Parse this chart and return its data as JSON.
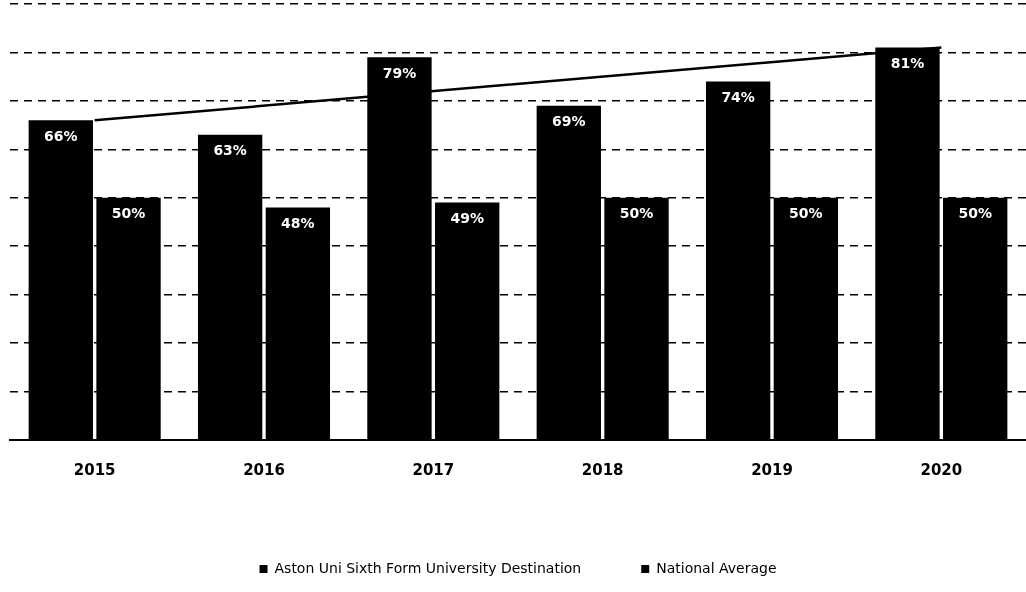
{
  "chart_data": {
    "type": "bar",
    "categories": [
      "2015",
      "2016",
      "2017",
      "2018",
      "2019",
      "2020"
    ],
    "series": [
      {
        "name": "Aston Uni Sixth Form University Destination",
        "color": "#000000",
        "values": [
          66,
          63,
          79,
          69,
          74,
          81
        ],
        "value_labels": [
          "66%",
          "63%",
          "79%",
          "69%",
          "74%",
          "81%"
        ]
      },
      {
        "name": "National Average",
        "color": "#000000",
        "values": [
          50,
          48,
          49,
          50,
          50,
          50
        ],
        "value_labels": [
          "50%",
          "48%",
          "49%",
          "50%",
          "50%",
          "50%"
        ]
      },
      {
        "type": "line",
        "color": "#000000",
        "values": [
          66,
          null,
          null,
          null,
          null,
          81
        ]
      }
    ],
    "grid": "y",
    "tick_labels": "x",
    "legend": "bottom",
    "marker": "none"
  }
}
